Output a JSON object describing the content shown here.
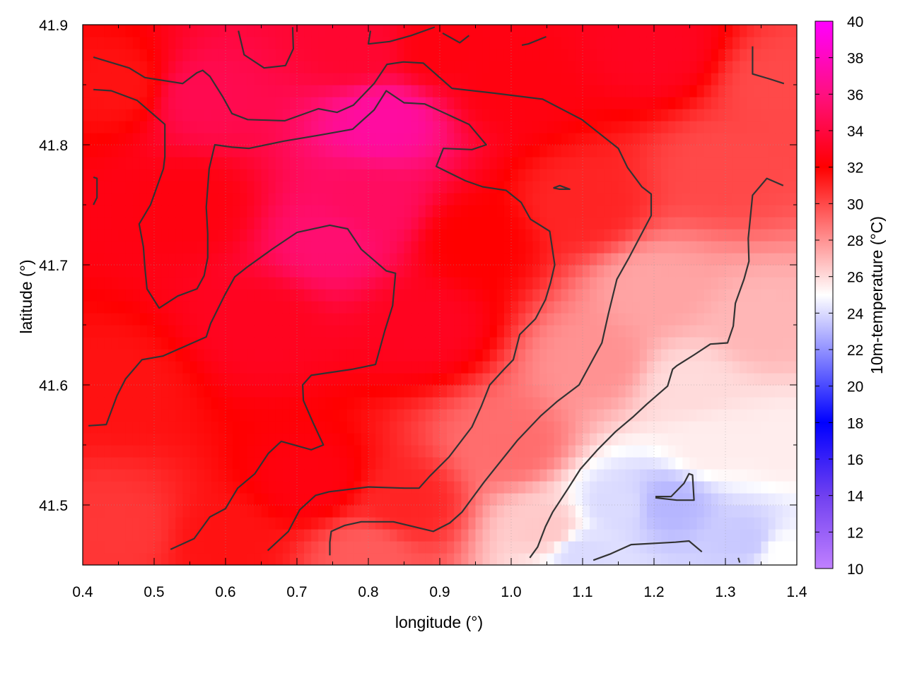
{
  "chart_data": {
    "type": "heatmap",
    "xlabel": "longitude (°)",
    "ylabel": "latitude (°)",
    "colorbar_label": "10m-temperature (°C)",
    "xlim": [
      0.4,
      1.4
    ],
    "ylim": [
      41.45,
      41.9
    ],
    "x_ticks": [
      {
        "value": 0.4,
        "label": "0.4"
      },
      {
        "value": 0.5,
        "label": "0.5"
      },
      {
        "value": 0.6,
        "label": "0.6"
      },
      {
        "value": 0.7,
        "label": "0.7"
      },
      {
        "value": 0.8,
        "label": "0.8"
      },
      {
        "value": 0.9,
        "label": "0.9"
      },
      {
        "value": 1.0,
        "label": "1.0"
      },
      {
        "value": 1.1,
        "label": "1.1"
      },
      {
        "value": 1.2,
        "label": "1.2"
      },
      {
        "value": 1.3,
        "label": "1.3"
      },
      {
        "value": 1.4,
        "label": "1.4"
      }
    ],
    "y_ticks": [
      {
        "value": 41.5,
        "label": "41.5"
      },
      {
        "value": 41.6,
        "label": "41.6"
      },
      {
        "value": 41.7,
        "label": "41.7"
      },
      {
        "value": 41.8,
        "label": "41.8"
      },
      {
        "value": 41.9,
        "label": "41.9"
      }
    ],
    "colorbar": {
      "range": [
        10,
        40
      ],
      "ticks": [
        {
          "value": 10,
          "label": "10"
        },
        {
          "value": 12,
          "label": "12"
        },
        {
          "value": 14,
          "label": "14"
        },
        {
          "value": 16,
          "label": "16"
        },
        {
          "value": 18,
          "label": "18"
        },
        {
          "value": 20,
          "label": "20"
        },
        {
          "value": 22,
          "label": "22"
        },
        {
          "value": 24,
          "label": "24"
        },
        {
          "value": 26,
          "label": "26"
        },
        {
          "value": 28,
          "label": "28"
        },
        {
          "value": 30,
          "label": "30"
        },
        {
          "value": 32,
          "label": "32"
        },
        {
          "value": 34,
          "label": "34"
        },
        {
          "value": 36,
          "label": "36"
        },
        {
          "value": 38,
          "label": "38"
        },
        {
          "value": 40,
          "label": "40"
        }
      ],
      "stops": [
        {
          "value": 10,
          "color": "#c080ff"
        },
        {
          "value": 14,
          "color": "#7040f0"
        },
        {
          "value": 18,
          "color": "#0000ff"
        },
        {
          "value": 25,
          "color": "#ffffff"
        },
        {
          "value": 32,
          "color": "#ff0000"
        },
        {
          "value": 36,
          "color": "#ff1080"
        },
        {
          "value": 40,
          "color": "#ff00ff"
        }
      ]
    },
    "grid": true,
    "field_sample_points": [
      {
        "lon": 0.45,
        "lat": 41.85,
        "temp": 31.5
      },
      {
        "lon": 0.45,
        "lat": 41.6,
        "temp": 31.5
      },
      {
        "lon": 0.45,
        "lat": 41.48,
        "temp": 30.5
      },
      {
        "lon": 0.55,
        "lat": 41.75,
        "temp": 32.5
      },
      {
        "lon": 0.57,
        "lat": 41.84,
        "temp": 34.5
      },
      {
        "lon": 0.65,
        "lat": 41.65,
        "temp": 33.0
      },
      {
        "lon": 0.72,
        "lat": 41.52,
        "temp": 32.5
      },
      {
        "lon": 0.75,
        "lat": 41.72,
        "temp": 35.5
      },
      {
        "lon": 0.8,
        "lat": 41.75,
        "temp": 35.0
      },
      {
        "lon": 0.82,
        "lat": 41.82,
        "temp": 37.0
      },
      {
        "lon": 0.78,
        "lat": 41.88,
        "temp": 33.5
      },
      {
        "lon": 0.88,
        "lat": 41.65,
        "temp": 33.0
      },
      {
        "lon": 0.85,
        "lat": 41.5,
        "temp": 31.0
      },
      {
        "lon": 0.8,
        "lat": 41.46,
        "temp": 29.5
      },
      {
        "lon": 0.95,
        "lat": 41.72,
        "temp": 32.0
      },
      {
        "lon": 1.0,
        "lat": 41.85,
        "temp": 32.5
      },
      {
        "lon": 1.2,
        "lat": 41.88,
        "temp": 33.0
      },
      {
        "lon": 1.1,
        "lat": 41.75,
        "temp": 31.0
      },
      {
        "lon": 1.3,
        "lat": 41.78,
        "temp": 30.0
      },
      {
        "lon": 1.38,
        "lat": 41.85,
        "temp": 30.0
      },
      {
        "lon": 1.0,
        "lat": 41.55,
        "temp": 29.0
      },
      {
        "lon": 1.05,
        "lat": 41.48,
        "temp": 26.5
      },
      {
        "lon": 1.12,
        "lat": 41.62,
        "temp": 28.0
      },
      {
        "lon": 1.2,
        "lat": 41.68,
        "temp": 27.5
      },
      {
        "lon": 1.35,
        "lat": 41.65,
        "temp": 27.0
      },
      {
        "lon": 1.15,
        "lat": 41.5,
        "temp": 24.0
      },
      {
        "lon": 1.22,
        "lat": 41.5,
        "temp": 23.0
      },
      {
        "lon": 1.28,
        "lat": 41.55,
        "temp": 25.5
      },
      {
        "lon": 1.1,
        "lat": 41.46,
        "temp": 24.0
      },
      {
        "lon": 1.33,
        "lat": 41.47,
        "temp": 23.5
      },
      {
        "lon": 1.38,
        "lat": 41.55,
        "temp": 25.5
      },
      {
        "lon": 1.38,
        "lat": 41.46,
        "temp": 25.0
      },
      {
        "lon": 0.6,
        "lat": 41.47,
        "temp": 31.5
      },
      {
        "lon": 0.9,
        "lat": 41.88,
        "temp": 32.5
      },
      {
        "lon": 1.25,
        "lat": 41.6,
        "temp": 26.0
      }
    ],
    "contour_lines": [
      [
        [
          0.415,
          41.873
        ],
        [
          0.465,
          41.864
        ],
        [
          0.487,
          41.856
        ],
        [
          0.54,
          41.851
        ],
        [
          0.56,
          41.86
        ],
        [
          0.568,
          41.862
        ],
        [
          0.578,
          41.857
        ],
        [
          0.596,
          41.84
        ],
        [
          0.609,
          41.826
        ],
        [
          0.631,
          41.821
        ],
        [
          0.683,
          41.82
        ],
        [
          0.73,
          41.83
        ],
        [
          0.756,
          41.827
        ],
        [
          0.779,
          41.833
        ],
        [
          0.808,
          41.851
        ],
        [
          0.826,
          41.867
        ],
        [
          0.849,
          41.869
        ],
        [
          0.877,
          41.868
        ],
        [
          0.917,
          41.847
        ],
        [
          0.976,
          41.843
        ],
        [
          1.044,
          41.838
        ],
        [
          1.099,
          41.821
        ],
        [
          1.15,
          41.797
        ],
        [
          1.163,
          41.781
        ],
        [
          1.183,
          41.765
        ],
        [
          1.196,
          41.759
        ],
        [
          1.196,
          41.741
        ],
        [
          1.165,
          41.706
        ],
        [
          1.148,
          41.688
        ],
        [
          1.136,
          41.659
        ],
        [
          1.127,
          41.635
        ],
        [
          1.095,
          41.6
        ],
        [
          1.064,
          41.586
        ],
        [
          1.041,
          41.574
        ],
        [
          1.009,
          41.554
        ],
        [
          0.978,
          41.531
        ],
        [
          0.962,
          41.519
        ],
        [
          0.947,
          41.507
        ],
        [
          0.931,
          41.494
        ],
        [
          0.914,
          41.485
        ],
        [
          0.891,
          41.478
        ],
        [
          0.835,
          41.486
        ],
        [
          0.79,
          41.486
        ],
        [
          0.767,
          41.483
        ],
        [
          0.748,
          41.478
        ],
        [
          0.746,
          41.469
        ],
        [
          0.746,
          41.458
        ]
      ],
      [
        [
          0.415,
          41.846
        ],
        [
          0.44,
          41.845
        ],
        [
          0.476,
          41.837
        ],
        [
          0.515,
          41.817
        ],
        [
          0.515,
          41.79
        ],
        [
          0.513,
          41.78
        ],
        [
          0.495,
          41.75
        ],
        [
          0.479,
          41.734
        ],
        [
          0.485,
          41.715
        ],
        [
          0.487,
          41.698
        ],
        [
          0.49,
          41.68
        ],
        [
          0.507,
          41.664
        ],
        [
          0.533,
          41.674
        ],
        [
          0.56,
          41.68
        ],
        [
          0.57,
          41.691
        ],
        [
          0.575,
          41.706
        ],
        [
          0.575,
          41.726
        ],
        [
          0.573,
          41.748
        ],
        [
          0.577,
          41.78
        ],
        [
          0.585,
          41.8
        ],
        [
          0.609,
          41.798
        ],
        [
          0.633,
          41.797
        ],
        [
          0.681,
          41.803
        ],
        [
          0.731,
          41.808
        ],
        [
          0.778,
          41.813
        ],
        [
          0.808,
          41.829
        ],
        [
          0.825,
          41.845
        ],
        [
          0.85,
          41.835
        ],
        [
          0.879,
          41.834
        ],
        [
          0.941,
          41.817
        ],
        [
          0.965,
          41.8
        ],
        [
          0.945,
          41.796
        ],
        [
          0.905,
          41.797
        ],
        [
          0.895,
          41.782
        ],
        [
          0.936,
          41.77
        ],
        [
          0.96,
          41.765
        ],
        [
          0.993,
          41.762
        ],
        [
          1.014,
          41.752
        ],
        [
          1.027,
          41.738
        ],
        [
          1.054,
          41.728
        ],
        [
          1.061,
          41.7
        ],
        [
          1.055,
          41.685
        ],
        [
          1.048,
          41.671
        ],
        [
          1.034,
          41.655
        ],
        [
          1.012,
          41.642
        ],
        [
          1.003,
          41.621
        ],
        [
          0.99,
          41.613
        ],
        [
          0.97,
          41.6
        ],
        [
          0.958,
          41.582
        ],
        [
          0.945,
          41.565
        ],
        [
          0.913,
          41.54
        ],
        [
          0.886,
          41.524
        ],
        [
          0.871,
          41.514
        ],
        [
          0.851,
          41.514
        ],
        [
          0.8,
          41.515
        ],
        [
          0.745,
          41.511
        ],
        [
          0.726,
          41.508
        ],
        [
          0.704,
          41.496
        ],
        [
          0.688,
          41.478
        ],
        [
          0.659,
          41.462
        ]
      ],
      [
        [
          0.408,
          41.566
        ],
        [
          0.433,
          41.567
        ],
        [
          0.448,
          41.591
        ],
        [
          0.46,
          41.605
        ],
        [
          0.483,
          41.621
        ],
        [
          0.512,
          41.624
        ],
        [
          0.573,
          41.64
        ],
        [
          0.579,
          41.651
        ],
        [
          0.599,
          41.675
        ],
        [
          0.613,
          41.69
        ],
        [
          0.63,
          41.698
        ],
        [
          0.665,
          41.713
        ],
        [
          0.7,
          41.727
        ],
        [
          0.746,
          41.733
        ],
        [
          0.771,
          41.73
        ],
        [
          0.79,
          41.713
        ],
        [
          0.825,
          41.695
        ],
        [
          0.838,
          41.693
        ],
        [
          0.834,
          41.666
        ],
        [
          0.823,
          41.645
        ],
        [
          0.81,
          41.617
        ],
        [
          0.777,
          41.613
        ],
        [
          0.72,
          41.608
        ],
        [
          0.708,
          41.6
        ],
        [
          0.709,
          41.587
        ],
        [
          0.723,
          41.568
        ],
        [
          0.737,
          41.55
        ],
        [
          0.72,
          41.546
        ],
        [
          0.678,
          41.553
        ],
        [
          0.66,
          41.543
        ],
        [
          0.641,
          41.526
        ],
        [
          0.617,
          41.514
        ],
        [
          0.605,
          41.502
        ],
        [
          0.6,
          41.497
        ],
        [
          0.578,
          41.49
        ],
        [
          0.556,
          41.472
        ],
        [
          0.523,
          41.463
        ]
      ],
      [
        [
          0.618,
          41.895
        ],
        [
          0.626,
          41.875
        ],
        [
          0.654,
          41.864
        ],
        [
          0.684,
          41.866
        ],
        [
          0.695,
          41.88
        ],
        [
          0.694,
          41.898
        ]
      ],
      [
        [
          0.803,
          41.895
        ],
        [
          0.8,
          41.884
        ],
        [
          0.83,
          41.886
        ],
        [
          0.86,
          41.891
        ],
        [
          0.893,
          41.898
        ]
      ],
      [
        [
          0.904,
          41.893
        ],
        [
          0.928,
          41.885
        ],
        [
          0.941,
          41.891
        ]
      ],
      [
        [
          1.015,
          41.883
        ],
        [
          1.024,
          41.884
        ],
        [
          1.049,
          41.89
        ]
      ],
      [
        [
          1.338,
          41.882
        ],
        [
          1.338,
          41.859
        ],
        [
          1.361,
          41.855
        ],
        [
          1.382,
          41.851
        ]
      ],
      [
        [
          0.415,
          41.773
        ],
        [
          0.42,
          41.772
        ],
        [
          0.42,
          41.756
        ],
        [
          0.415,
          41.75
        ]
      ],
      [
        [
          1.059,
          41.764
        ],
        [
          1.068,
          41.766
        ],
        [
          1.082,
          41.763
        ],
        [
          1.068,
          41.763
        ],
        [
          1.059,
          41.764
        ]
      ],
      [
        [
          1.026,
          41.456
        ],
        [
          1.037,
          41.465
        ],
        [
          1.048,
          41.482
        ],
        [
          1.058,
          41.494
        ],
        [
          1.08,
          41.514
        ],
        [
          1.097,
          41.53
        ],
        [
          1.121,
          41.546
        ],
        [
          1.146,
          41.561
        ],
        [
          1.17,
          41.573
        ],
        [
          1.19,
          41.584
        ],
        [
          1.219,
          41.599
        ],
        [
          1.226,
          41.613
        ],
        [
          1.232,
          41.616
        ],
        [
          1.256,
          41.625
        ],
        [
          1.279,
          41.634
        ],
        [
          1.303,
          41.635
        ],
        [
          1.311,
          41.649
        ],
        [
          1.314,
          41.668
        ],
        [
          1.326,
          41.688
        ],
        [
          1.333,
          41.703
        ],
        [
          1.332,
          41.722
        ],
        [
          1.338,
          41.758
        ],
        [
          1.358,
          41.772
        ],
        [
          1.381,
          41.766
        ]
      ],
      [
        [
          1.115,
          41.454
        ],
        [
          1.138,
          41.459
        ],
        [
          1.168,
          41.467
        ],
        [
          1.23,
          41.469
        ],
        [
          1.249,
          41.47
        ],
        [
          1.267,
          41.461
        ]
      ],
      [
        [
          1.202,
          41.507
        ],
        [
          1.224,
          41.507
        ],
        [
          1.242,
          41.518
        ],
        [
          1.249,
          41.526
        ],
        [
          1.254,
          41.525
        ],
        [
          1.256,
          41.504
        ],
        [
          1.232,
          41.504
        ],
        [
          1.202,
          41.506
        ]
      ],
      [
        [
          1.318,
          41.456
        ],
        [
          1.32,
          41.452
        ]
      ]
    ]
  }
}
